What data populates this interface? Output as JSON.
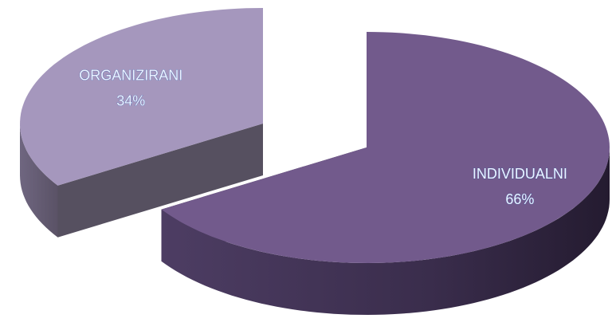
{
  "chart_data": {
    "type": "pie",
    "categories": [
      "INDIVIDUALNI",
      "ORGANIZIRANI"
    ],
    "values": [
      66,
      34
    ],
    "value_labels": [
      "66%",
      "34%"
    ],
    "colors": [
      "#725a8c",
      "#a597bd"
    ]
  }
}
